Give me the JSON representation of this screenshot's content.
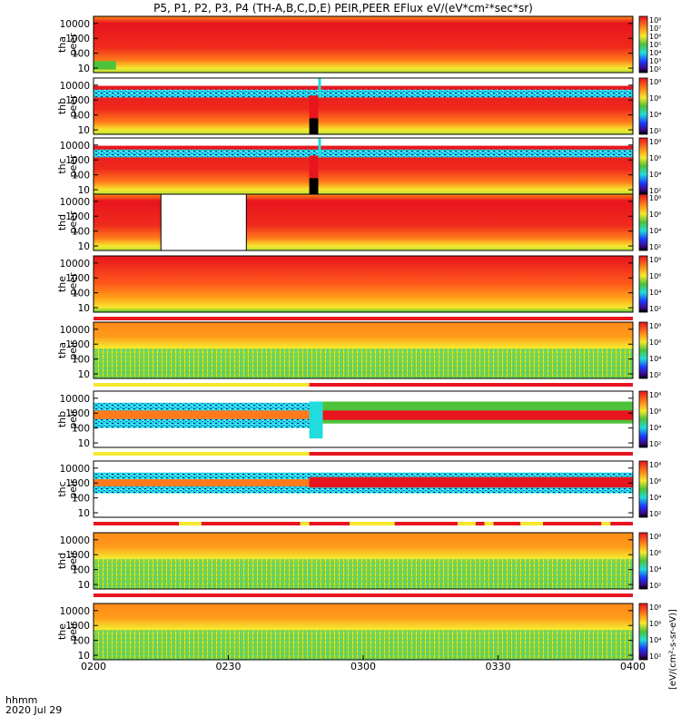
{
  "title": "P5, P1, P2, P3, P4 (TH-A,B,C,D,E) PEIR,PEER EFlux eV/(eV*cm²*sec*sr)",
  "x_axis": {
    "label_line1": "hhmm",
    "label_line2": "2020 Jul 29",
    "ticks": [
      "0200",
      "0230",
      "0300",
      "0330",
      "0400"
    ]
  },
  "colorbar_label": "[eV/(cm²-s-sr-eV)]",
  "colors": {
    "red": "#e8141e",
    "orange": "#ff7a1a",
    "yellow": "#f6e82e",
    "green": "#4ec23a",
    "cyan": "#21dcdc",
    "blue": "#1c5cff",
    "darkblue": "#0a0aa8",
    "black": "#000000"
  },
  "chart_data": {
    "type": "heatmap",
    "x_time_range": [
      "02:00",
      "04:00"
    ],
    "panels": [
      {
        "id": "tha_peer",
        "probe_label": "tha",
        "species_label": "peer",
        "y_ticks": [
          "10000",
          "1000",
          "100",
          "10"
        ],
        "ylim": [
          5,
          30000
        ],
        "y_scale": "log",
        "cbar_ticks": [
          "10⁸",
          "10⁷",
          "10⁶",
          "10⁵",
          "10⁴",
          "10³",
          "10²"
        ],
        "features": [
          "red 200-30000 eV all interval",
          "low-energy green patch 02:00-02:05"
        ]
      },
      {
        "id": "thb_peer",
        "probe_label": "thb",
        "species_label": "peer",
        "y_ticks": [
          "10000",
          "1000",
          "100",
          "10"
        ],
        "ylim": [
          5,
          30000
        ],
        "y_scale": "log",
        "cbar_ticks": [
          "10⁸",
          "10⁶",
          "10⁴",
          "10²"
        ],
        "features": [
          "cyan noisy band 1500-5000 eV",
          "black gap 02:48-02:50 below 60 eV"
        ]
      },
      {
        "id": "thc_peer",
        "probe_label": "thc",
        "species_label": "peer",
        "y_ticks": [
          "10000",
          "1000",
          "100",
          "10"
        ],
        "ylim": [
          5,
          30000
        ],
        "y_scale": "log",
        "cbar_ticks": [
          "10⁸",
          "10⁶",
          "10⁴",
          "10²"
        ],
        "features": [
          "cyan noisy band 1500-5000 eV",
          "black gap 02:48-02:50 below 60 eV"
        ]
      },
      {
        "id": "thd_peer",
        "probe_label": "thd",
        "species_label": "peer",
        "y_ticks": [
          "10000",
          "1000",
          "100",
          "10"
        ],
        "ylim": [
          5,
          30000
        ],
        "y_scale": "log",
        "cbar_ticks": [
          "10⁸",
          "10⁶",
          "10⁴",
          "10²"
        ],
        "features": [
          "data gap 02:15-02:34"
        ]
      },
      {
        "id": "the_peer",
        "probe_label": "the",
        "species_label": "peer",
        "y_ticks": [
          "10000",
          "1000",
          "100",
          "10"
        ],
        "ylim": [
          5,
          30000
        ],
        "y_scale": "log",
        "cbar_ticks": [
          "10⁸",
          "10⁶",
          "10⁴",
          "10²"
        ],
        "features": [
          "red peak 1000-10000 eV"
        ]
      },
      {
        "id": "tha_peir",
        "probe_label": "tha",
        "species_label": "peir",
        "y_ticks": [
          "10000",
          "1000",
          "100",
          "10"
        ],
        "ylim": [
          5,
          30000
        ],
        "y_scale": "log",
        "cbar_ticks": [
          "10⁸",
          "10⁶",
          "10⁴",
          "10²"
        ],
        "features": [
          "orange 1000-30000 eV, green noise below"
        ]
      },
      {
        "id": "thb_peir",
        "probe_label": "thb",
        "species_label": "peir",
        "y_ticks": [
          "10000",
          "1000",
          "100",
          "10"
        ],
        "ylim": [
          5,
          30000
        ],
        "y_scale": "log",
        "cbar_ticks": [
          "10⁸",
          "10⁶",
          "10⁴",
          "10²"
        ],
        "features": [
          "narrow band 100-5000 eV before 02:48",
          "red band 300-1500 eV after 02:51"
        ]
      },
      {
        "id": "thc_peir",
        "probe_label": "thc",
        "species_label": "peir",
        "y_ticks": [
          "10000",
          "1000",
          "100",
          "10"
        ],
        "ylim": [
          5,
          30000
        ],
        "y_scale": "log",
        "cbar_ticks": [
          "10⁸",
          "10⁶",
          "10⁴",
          "10²"
        ],
        "features": [
          "band 200-5000 eV",
          "red band 800-1500 eV after 02:48"
        ]
      },
      {
        "id": "thd_peir",
        "probe_label": "thd",
        "species_label": "peir",
        "y_ticks": [
          "10000",
          "1000",
          "100",
          "10"
        ],
        "ylim": [
          5,
          30000
        ],
        "y_scale": "log",
        "cbar_ticks": [
          "10⁸",
          "10⁶",
          "10⁴",
          "10²"
        ],
        "features": [
          "orange 1000-30000 eV, green noise below"
        ]
      },
      {
        "id": "the_peir",
        "probe_label": "the",
        "species_label": "peir",
        "y_ticks": [
          "10000",
          "1000",
          "100",
          "10"
        ],
        "ylim": [
          5,
          30000
        ],
        "y_scale": "log",
        "cbar_ticks": [
          "10⁸",
          "10⁶",
          "10⁴",
          "10²"
        ],
        "features": [
          "orange 1000-30000 eV, green noise below"
        ]
      }
    ],
    "mode_bars": [
      {
        "after_panel": "the_peer",
        "segments": [
          {
            "from": "02:00",
            "to": "04:00",
            "color": "red"
          }
        ]
      },
      {
        "after_panel": "tha_peir",
        "segments": [
          {
            "from": "02:00",
            "to": "02:48",
            "color": "yellow"
          },
          {
            "from": "02:48",
            "to": "04:00",
            "color": "red"
          }
        ]
      },
      {
        "after_panel": "thb_peir",
        "segments": [
          {
            "from": "02:00",
            "to": "02:48",
            "color": "yellow"
          },
          {
            "from": "02:48",
            "to": "04:00",
            "color": "red"
          }
        ]
      },
      {
        "after_panel": "thc_peir",
        "segments": [
          {
            "from": "02:00",
            "to": "02:19",
            "color": "red"
          },
          {
            "from": "02:19",
            "to": "02:24",
            "color": "yellow"
          },
          {
            "from": "02:24",
            "to": "02:46",
            "color": "red"
          },
          {
            "from": "02:46",
            "to": "02:48",
            "color": "yellow"
          },
          {
            "from": "02:48",
            "to": "02:57",
            "color": "red"
          },
          {
            "from": "02:57",
            "to": "03:07",
            "color": "yellow"
          },
          {
            "from": "03:07",
            "to": "03:21",
            "color": "red"
          },
          {
            "from": "03:21",
            "to": "03:25",
            "color": "yellow"
          },
          {
            "from": "03:25",
            "to": "03:27",
            "color": "red"
          },
          {
            "from": "03:27",
            "to": "03:29",
            "color": "yellow"
          },
          {
            "from": "03:29",
            "to": "03:35",
            "color": "red"
          },
          {
            "from": "03:35",
            "to": "03:40",
            "color": "yellow"
          },
          {
            "from": "03:40",
            "to": "03:53",
            "color": "red"
          },
          {
            "from": "03:53",
            "to": "03:55",
            "color": "yellow"
          },
          {
            "from": "03:55",
            "to": "04:00",
            "color": "red"
          }
        ]
      },
      {
        "after_panel": "thd_peir",
        "segments": [
          {
            "from": "02:00",
            "to": "04:00",
            "color": "red"
          }
        ]
      }
    ]
  }
}
